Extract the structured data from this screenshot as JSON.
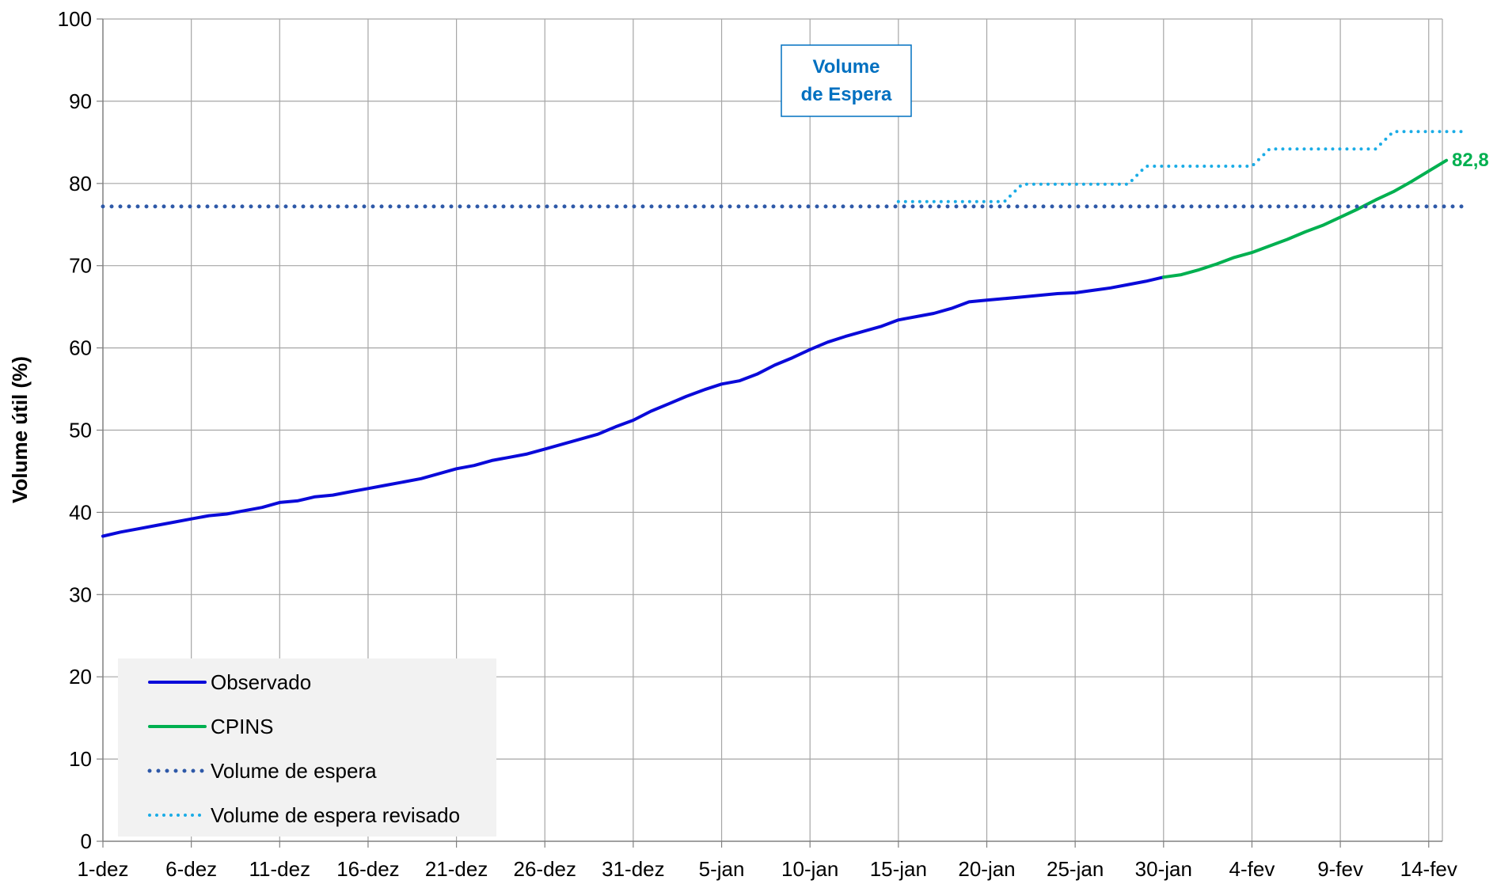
{
  "chart_data": {
    "type": "line",
    "title": "",
    "xlabel": "",
    "ylabel": "Volume útil (%)",
    "ylim": [
      0,
      100
    ],
    "y_ticks": [
      0,
      10,
      20,
      30,
      40,
      50,
      60,
      70,
      80,
      90,
      100
    ],
    "x_domain": [
      "2021-12-01",
      "2022-02-16"
    ],
    "x_ticks": [
      "1-dez",
      "6-dez",
      "11-dez",
      "16-dez",
      "21-dez",
      "26-dez",
      "31-dez",
      "5-jan",
      "10-jan",
      "15-jan",
      "20-jan",
      "25-jan",
      "30-jan",
      "4-fev",
      "9-fev",
      "14-fev"
    ],
    "x_tick_dates": [
      "2021-12-01",
      "2021-12-06",
      "2021-12-11",
      "2021-12-16",
      "2021-12-21",
      "2021-12-26",
      "2021-12-31",
      "2022-01-05",
      "2022-01-10",
      "2022-01-15",
      "2022-01-20",
      "2022-01-25",
      "2022-01-30",
      "2022-02-04",
      "2022-02-09",
      "2022-02-14"
    ],
    "grid": true,
    "legend_position": "bottom-left",
    "series": [
      {
        "name": "Observado",
        "color": "#0a0ad9",
        "style": "solid",
        "points": [
          [
            "2021-12-01",
            37.1
          ],
          [
            "2021-12-02",
            37.6
          ],
          [
            "2021-12-03",
            38.0
          ],
          [
            "2021-12-04",
            38.4
          ],
          [
            "2021-12-05",
            38.8
          ],
          [
            "2021-12-06",
            39.2
          ],
          [
            "2021-12-07",
            39.6
          ],
          [
            "2021-12-08",
            39.8
          ],
          [
            "2021-12-09",
            40.2
          ],
          [
            "2021-12-10",
            40.6
          ],
          [
            "2021-12-11",
            41.2
          ],
          [
            "2021-12-12",
            41.4
          ],
          [
            "2021-12-13",
            41.9
          ],
          [
            "2021-12-14",
            42.1
          ],
          [
            "2021-12-15",
            42.5
          ],
          [
            "2021-12-16",
            42.9
          ],
          [
            "2021-12-17",
            43.3
          ],
          [
            "2021-12-18",
            43.7
          ],
          [
            "2021-12-19",
            44.1
          ],
          [
            "2021-12-20",
            44.7
          ],
          [
            "2021-12-21",
            45.3
          ],
          [
            "2021-12-22",
            45.7
          ],
          [
            "2021-12-23",
            46.3
          ],
          [
            "2021-12-24",
            46.7
          ],
          [
            "2021-12-25",
            47.1
          ],
          [
            "2021-12-26",
            47.7
          ],
          [
            "2021-12-27",
            48.3
          ],
          [
            "2021-12-28",
            48.9
          ],
          [
            "2021-12-29",
            49.5
          ],
          [
            "2021-12-30",
            50.4
          ],
          [
            "2021-12-31",
            51.2
          ],
          [
            "2022-01-01",
            52.3
          ],
          [
            "2022-01-02",
            53.2
          ],
          [
            "2022-01-03",
            54.1
          ],
          [
            "2022-01-04",
            54.9
          ],
          [
            "2022-01-05",
            55.6
          ],
          [
            "2022-01-06",
            56.0
          ],
          [
            "2022-01-07",
            56.8
          ],
          [
            "2022-01-08",
            57.9
          ],
          [
            "2022-01-09",
            58.8
          ],
          [
            "2022-01-10",
            59.8
          ],
          [
            "2022-01-11",
            60.7
          ],
          [
            "2022-01-12",
            61.4
          ],
          [
            "2022-01-13",
            62.0
          ],
          [
            "2022-01-14",
            62.6
          ],
          [
            "2022-01-15",
            63.4
          ],
          [
            "2022-01-16",
            63.8
          ],
          [
            "2022-01-17",
            64.2
          ],
          [
            "2022-01-18",
            64.8
          ],
          [
            "2022-01-19",
            65.6
          ],
          [
            "2022-01-20",
            65.8
          ],
          [
            "2022-01-21",
            66.0
          ],
          [
            "2022-01-22",
            66.2
          ],
          [
            "2022-01-23",
            66.4
          ],
          [
            "2022-01-24",
            66.6
          ],
          [
            "2022-01-25",
            66.7
          ],
          [
            "2022-01-26",
            67.0
          ],
          [
            "2022-01-27",
            67.3
          ],
          [
            "2022-01-28",
            67.7
          ],
          [
            "2022-01-29",
            68.1
          ],
          [
            "2022-01-30",
            68.6
          ]
        ]
      },
      {
        "name": "CPINS",
        "color": "#00b050",
        "style": "solid",
        "points": [
          [
            "2022-01-30",
            68.6
          ],
          [
            "2022-01-31",
            68.9
          ],
          [
            "2022-02-01",
            69.5
          ],
          [
            "2022-02-02",
            70.2
          ],
          [
            "2022-02-03",
            71.0
          ],
          [
            "2022-02-04",
            71.6
          ],
          [
            "2022-02-05",
            72.4
          ],
          [
            "2022-02-06",
            73.2
          ],
          [
            "2022-02-07",
            74.1
          ],
          [
            "2022-02-08",
            74.9
          ],
          [
            "2022-02-09",
            75.9
          ],
          [
            "2022-02-10",
            76.9
          ],
          [
            "2022-02-11",
            78.0
          ],
          [
            "2022-02-12",
            79.0
          ],
          [
            "2022-02-13",
            80.2
          ],
          [
            "2022-02-14",
            81.5
          ],
          [
            "2022-02-15",
            82.8
          ]
        ]
      },
      {
        "name": "Volume de espera",
        "color": "#2e59a8",
        "style": "dotted",
        "points": [
          [
            "2021-12-01",
            77.2
          ],
          [
            "2022-02-16",
            77.2
          ]
        ]
      },
      {
        "name": "Volume de espera revisado",
        "color": "#1aace6",
        "style": "dotted",
        "points": [
          [
            "2022-01-15",
            77.8
          ],
          [
            "2022-01-21",
            77.8
          ],
          [
            "2022-01-22",
            79.9
          ],
          [
            "2022-01-28",
            79.9
          ],
          [
            "2022-01-29",
            82.1
          ],
          [
            "2022-02-04",
            82.1
          ],
          [
            "2022-02-05",
            84.2
          ],
          [
            "2022-02-11",
            84.2
          ],
          [
            "2022-02-12",
            86.3
          ],
          [
            "2022-02-16",
            86.3
          ]
        ]
      }
    ],
    "annotations": [
      {
        "text_lines": [
          "Volume",
          "de Espera"
        ],
        "color": "#0070c0"
      },
      {
        "text": "82,8",
        "color": "#00b050"
      }
    ]
  }
}
